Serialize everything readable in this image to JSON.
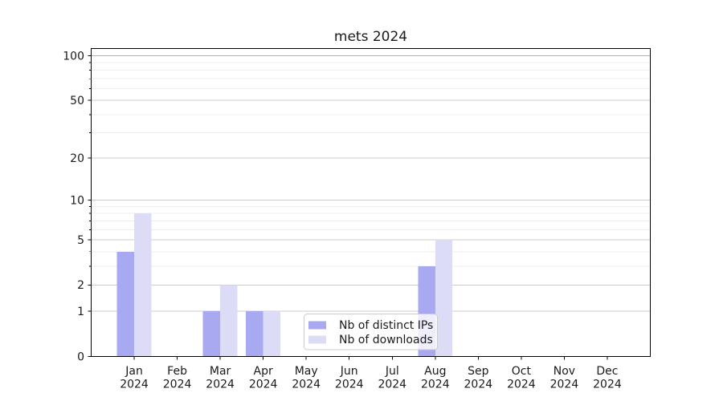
{
  "chart_data": {
    "type": "bar",
    "title": "mets 2024",
    "scale": "symlog-log1p",
    "categories": [
      {
        "month": "Jan",
        "year": "2024"
      },
      {
        "month": "Feb",
        "year": "2024"
      },
      {
        "month": "Mar",
        "year": "2024"
      },
      {
        "month": "Apr",
        "year": "2024"
      },
      {
        "month": "May",
        "year": "2024"
      },
      {
        "month": "Jun",
        "year": "2024"
      },
      {
        "month": "Jul",
        "year": "2024"
      },
      {
        "month": "Aug",
        "year": "2024"
      },
      {
        "month": "Sep",
        "year": "2024"
      },
      {
        "month": "Oct",
        "year": "2024"
      },
      {
        "month": "Nov",
        "year": "2024"
      },
      {
        "month": "Dec",
        "year": "2024"
      }
    ],
    "series": [
      {
        "name": "Nb of distinct IPs",
        "color": "#a9a9f2",
        "values": [
          4,
          0,
          1,
          1,
          0,
          0,
          0,
          3,
          0,
          0,
          0,
          0
        ]
      },
      {
        "name": "Nb of downloads",
        "color": "#dcdcf7",
        "values": [
          8,
          0,
          2,
          1,
          0,
          0,
          0,
          5,
          0,
          0,
          0,
          0
        ]
      }
    ],
    "xlabel": "",
    "ylabel": "",
    "yticks": [
      0,
      1,
      2,
      5,
      10,
      20,
      50,
      100
    ],
    "minor_yticks": [
      3,
      4,
      6,
      7,
      8,
      9,
      30,
      40,
      60,
      70,
      80,
      90
    ],
    "ylim": [
      0,
      112
    ],
    "grid": "both",
    "legend": {
      "position": "lower-center-inside"
    }
  },
  "colors": {
    "major_grid": "#cccccc",
    "top_major_grid": "#b2b2b2",
    "minor_grid": "#ededed",
    "spine": "#000000",
    "text": "#1a1a1a",
    "legend_border": "#cccccc",
    "legend_bg": "rgba(255,255,255,0.8)"
  }
}
